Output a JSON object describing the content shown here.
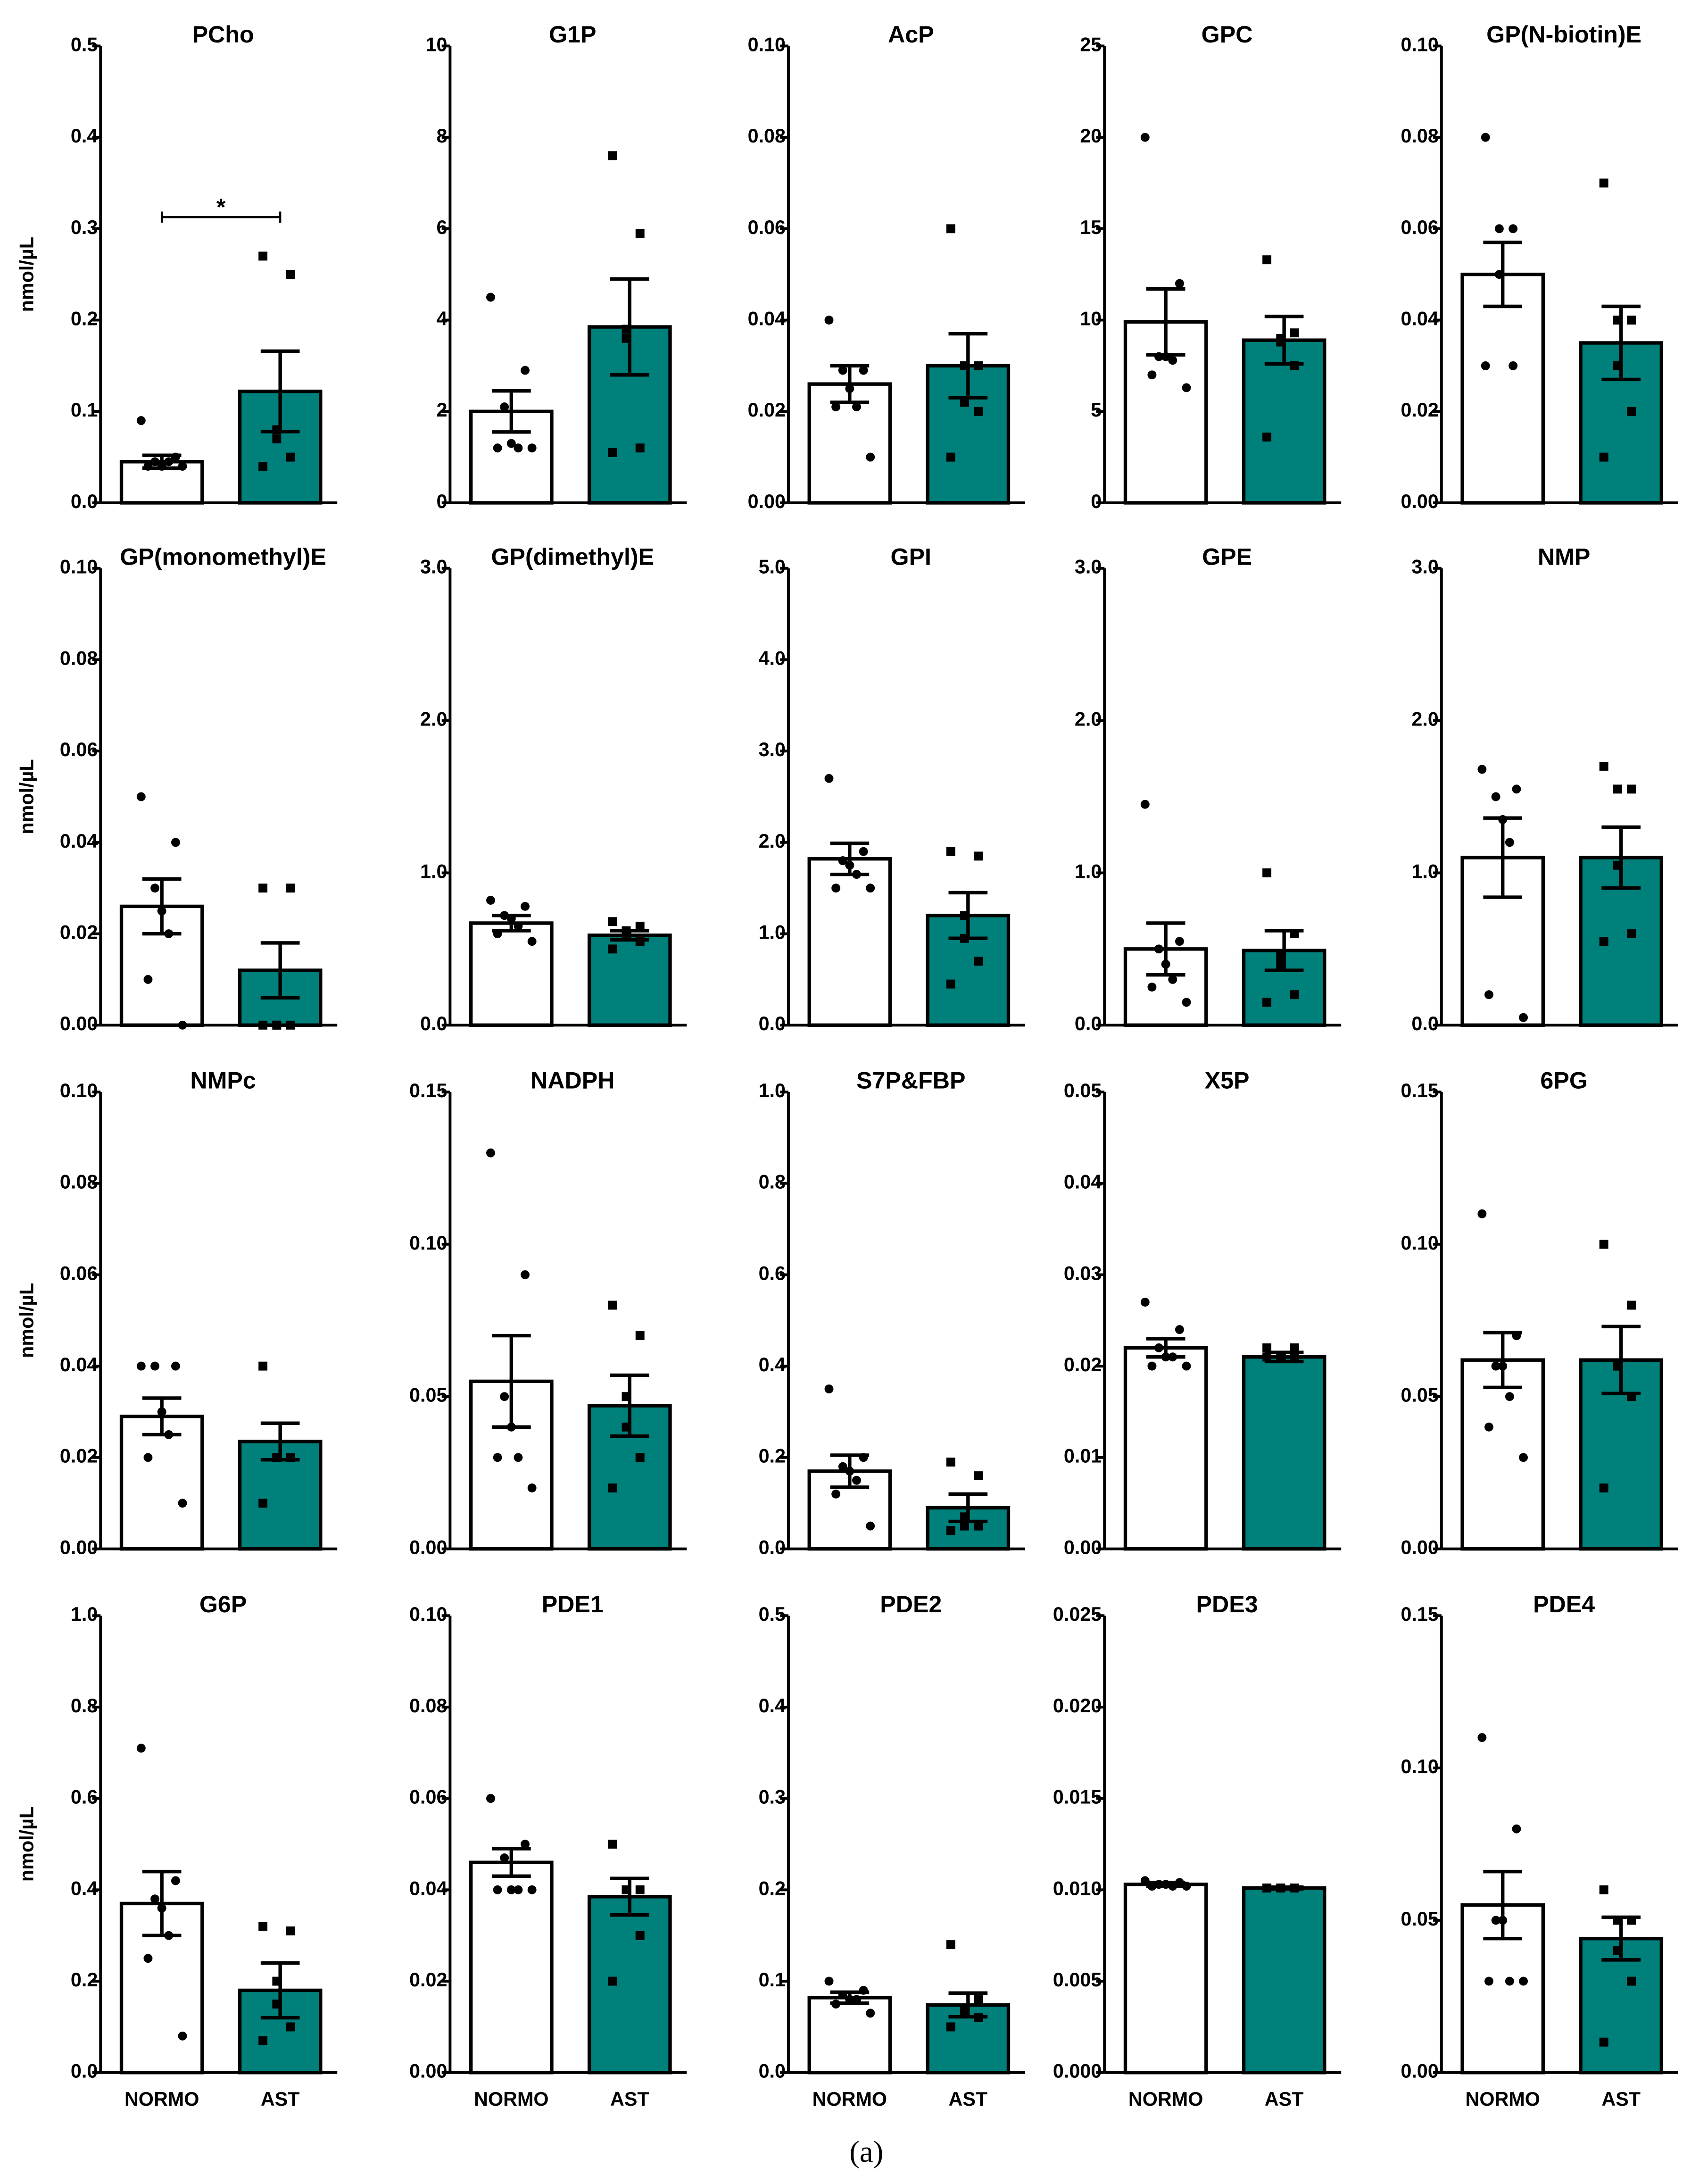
{
  "y_label": "nmol/µL",
  "categories": [
    "NORMO",
    "AST"
  ],
  "colors": [
    "#ffffff",
    "#00807a"
  ],
  "caption": "(a)",
  "chart_data": [
    {
      "type": "bar",
      "title": "PCho",
      "ylim": [
        0,
        0.5
      ],
      "yticks": [
        {
          "value": 0,
          "label": "0.0"
        },
        0.1,
        0.2,
        0.3,
        0.4,
        0.5
      ],
      "values": [
        0.045,
        0.122
      ],
      "errors": [
        0.007,
        0.044
      ],
      "points": [
        [
          0.09,
          0.05,
          0.045,
          0.04,
          0.045,
          0.04,
          0.04
        ],
        [
          0.27,
          0.25,
          0.08,
          0.07,
          0.05,
          0.04
        ]
      ],
      "annotation": "*"
    },
    {
      "type": "bar",
      "title": "G1P",
      "ylim": [
        0,
        10
      ],
      "yticks": [
        0,
        2,
        4,
        6,
        8,
        10
      ],
      "values": [
        2.0,
        3.85
      ],
      "errors": [
        0.45,
        1.05
      ],
      "points": [
        [
          4.5,
          2.9,
          2.1,
          1.3,
          1.2,
          1.2,
          1.2
        ],
        [
          7.6,
          5.9,
          3.8,
          3.6,
          1.2,
          1.1
        ]
      ]
    },
    {
      "type": "bar",
      "title": "AcP",
      "ylim": [
        0,
        0.1
      ],
      "yticks": [
        {
          "value": 0,
          "label": "0.00"
        },
        0.02,
        0.04,
        0.06,
        0.08,
        {
          "value": 0.1,
          "label": "0.10"
        }
      ],
      "values": [
        0.026,
        0.03
      ],
      "errors": [
        0.004,
        0.007
      ],
      "points": [
        [
          0.04,
          0.029,
          0.029,
          0.025,
          0.021,
          0.021,
          0.01
        ],
        [
          0.06,
          0.03,
          0.03,
          0.022,
          0.02,
          0.01
        ]
      ]
    },
    {
      "type": "bar",
      "title": "GPC",
      "ylim": [
        0,
        25
      ],
      "yticks": [
        0,
        5,
        10,
        15,
        20,
        25
      ],
      "values": [
        9.9,
        8.9
      ],
      "errors": [
        1.8,
        1.3
      ],
      "points": [
        [
          20,
          12,
          8,
          8,
          7.8,
          7,
          6.3
        ],
        [
          13.3,
          9.3,
          9,
          8.8,
          7.5,
          3.6
        ]
      ]
    },
    {
      "type": "bar",
      "title": "GP(N-biotin)E",
      "ylim": [
        0,
        0.1
      ],
      "yticks": [
        {
          "value": 0,
          "label": "0.00"
        },
        0.02,
        0.04,
        0.06,
        0.08,
        {
          "value": 0.1,
          "label": "0.10"
        }
      ],
      "values": [
        0.05,
        0.035
      ],
      "errors": [
        0.007,
        0.008
      ],
      "points": [
        [
          0.08,
          0.06,
          0.06,
          0.05,
          0.03,
          0.03
        ],
        [
          0.07,
          0.04,
          0.04,
          0.03,
          0.02,
          0.01
        ]
      ]
    },
    {
      "type": "bar",
      "title": "GP(monomethyl)E",
      "ylim": [
        0,
        0.1
      ],
      "yticks": [
        {
          "value": 0,
          "label": "0.00"
        },
        0.02,
        0.04,
        0.06,
        0.08,
        {
          "value": 0.1,
          "label": "0.10"
        }
      ],
      "values": [
        0.026,
        0.012
      ],
      "errors": [
        0.006,
        0.006
      ],
      "points": [
        [
          0.05,
          0.04,
          0.03,
          0.025,
          0.02,
          0.01,
          0
        ],
        [
          0.03,
          0.03,
          0,
          0,
          0,
          0
        ]
      ]
    },
    {
      "type": "bar",
      "title": "GP(dimethyl)E",
      "ylim": [
        0,
        3
      ],
      "yticks": [
        {
          "value": 0,
          "label": "0.0"
        },
        {
          "value": 1,
          "label": "1.0"
        },
        {
          "value": 2,
          "label": "2.0"
        },
        {
          "value": 3,
          "label": "3.0"
        }
      ],
      "values": [
        0.67,
        0.59
      ],
      "errors": [
        0.05,
        0.03
      ],
      "points": [
        [
          0.82,
          0.78,
          0.72,
          0.7,
          0.65,
          0.6,
          0.55
        ],
        [
          0.68,
          0.65,
          0.62,
          0.6,
          0.55,
          0.5
        ]
      ]
    },
    {
      "type": "bar",
      "title": "GPI",
      "ylim": [
        0,
        5
      ],
      "yticks": [
        {
          "value": 0,
          "label": "0.0"
        },
        {
          "value": 1,
          "label": "1.0"
        },
        {
          "value": 2,
          "label": "2.0"
        },
        {
          "value": 3,
          "label": "3.0"
        },
        {
          "value": 4,
          "label": "4.0"
        },
        {
          "value": 5,
          "label": "5.0"
        }
      ],
      "values": [
        1.82,
        1.2
      ],
      "errors": [
        0.17,
        0.25
      ],
      "points": [
        [
          2.7,
          1.9,
          1.8,
          1.75,
          1.65,
          1.5,
          1.5
        ],
        [
          1.9,
          1.85,
          1.2,
          0.95,
          0.7,
          0.45
        ]
      ]
    },
    {
      "type": "bar",
      "title": "GPE",
      "ylim": [
        0,
        3
      ],
      "yticks": [
        {
          "value": 0,
          "label": "0.0"
        },
        {
          "value": 1,
          "label": "1.0"
        },
        {
          "value": 2,
          "label": "2.0"
        },
        {
          "value": 3,
          "label": "3.0"
        }
      ],
      "values": [
        0.5,
        0.49
      ],
      "errors": [
        0.17,
        0.13
      ],
      "points": [
        [
          1.45,
          0.55,
          0.5,
          0.4,
          0.3,
          0.25,
          0.15
        ],
        [
          1.0,
          0.6,
          0.45,
          0.4,
          0.2,
          0.15
        ]
      ]
    },
    {
      "type": "bar",
      "title": "NMP",
      "ylim": [
        0,
        3
      ],
      "yticks": [
        {
          "value": 0,
          "label": "0.0"
        },
        {
          "value": 1,
          "label": "1.0"
        },
        {
          "value": 2,
          "label": "2.0"
        },
        {
          "value": 3,
          "label": "3.0"
        }
      ],
      "values": [
        1.1,
        1.1
      ],
      "errors": [
        0.26,
        0.2
      ],
      "points": [
        [
          1.68,
          1.55,
          1.5,
          1.35,
          1.2,
          0.2,
          0.05
        ],
        [
          1.7,
          1.55,
          1.55,
          1.05,
          0.6,
          0.55
        ]
      ]
    },
    {
      "type": "bar",
      "title": "NMPc",
      "ylim": [
        0,
        0.1
      ],
      "yticks": [
        {
          "value": 0,
          "label": "0.00"
        },
        0.02,
        0.04,
        0.06,
        0.08,
        {
          "value": 0.1,
          "label": "0.10"
        }
      ],
      "values": [
        0.029,
        0.0235
      ],
      "errors": [
        0.004,
        0.004
      ],
      "points": [
        [
          0.04,
          0.04,
          0.04,
          0.03,
          0.025,
          0.02,
          0.01
        ],
        [
          0.04,
          0.02,
          0.02,
          0.02,
          0.02,
          0.01
        ]
      ]
    },
    {
      "type": "bar",
      "title": "NADPH",
      "ylim": [
        0,
        0.15
      ],
      "yticks": [
        {
          "value": 0,
          "label": "0.00"
        },
        0.05,
        {
          "value": 0.1,
          "label": "0.10"
        },
        0.15
      ],
      "values": [
        0.055,
        0.047
      ],
      "errors": [
        0.015,
        0.01
      ],
      "points": [
        [
          0.13,
          0.09,
          0.05,
          0.04,
          0.03,
          0.03,
          0.02
        ],
        [
          0.08,
          0.07,
          0.05,
          0.04,
          0.03,
          0.02
        ]
      ]
    },
    {
      "type": "bar",
      "title": "S7P&FBP",
      "ylim": [
        0,
        1
      ],
      "yticks": [
        {
          "value": 0,
          "label": "0.0"
        },
        0.2,
        0.4,
        0.6,
        0.8,
        {
          "value": 1,
          "label": "1.0"
        }
      ],
      "values": [
        0.17,
        0.09
      ],
      "errors": [
        0.035,
        0.03
      ],
      "points": [
        [
          0.35,
          0.2,
          0.18,
          0.17,
          0.15,
          0.12,
          0.05
        ],
        [
          0.19,
          0.16,
          0.07,
          0.05,
          0.05,
          0.04
        ]
      ]
    },
    {
      "type": "bar",
      "title": "X5P",
      "ylim": [
        0,
        0.05
      ],
      "yticks": [
        {
          "value": 0,
          "label": "0.00"
        },
        0.01,
        0.02,
        0.03,
        0.04,
        0.05
      ],
      "values": [
        0.022,
        0.021
      ],
      "errors": [
        0.001,
        0.0005
      ],
      "points": [
        [
          0.027,
          0.024,
          0.022,
          0.021,
          0.021,
          0.02,
          0.02
        ],
        [
          0.022,
          0.022,
          0.021,
          0.021,
          0.021,
          0.021
        ]
      ]
    },
    {
      "type": "bar",
      "title": "6PG",
      "ylim": [
        0,
        0.15
      ],
      "yticks": [
        {
          "value": 0,
          "label": "0.00"
        },
        0.05,
        {
          "value": 0.1,
          "label": "0.10"
        },
        0.15
      ],
      "values": [
        0.062,
        0.062
      ],
      "errors": [
        0.009,
        0.011
      ],
      "points": [
        [
          0.11,
          0.07,
          0.06,
          0.06,
          0.05,
          0.04,
          0.03
        ],
        [
          0.1,
          0.08,
          0.06,
          0.06,
          0.05,
          0.02
        ]
      ]
    },
    {
      "type": "bar",
      "title": "G6P",
      "ylim": [
        0,
        1
      ],
      "yticks": [
        {
          "value": 0,
          "label": "0.0"
        },
        0.2,
        0.4,
        0.6,
        0.8,
        {
          "value": 1,
          "label": "1.0"
        }
      ],
      "values": [
        0.37,
        0.18
      ],
      "errors": [
        0.07,
        0.06
      ],
      "points": [
        [
          0.71,
          0.42,
          0.38,
          0.36,
          0.3,
          0.25,
          0.08
        ],
        [
          0.32,
          0.31,
          0.2,
          0.15,
          0.1,
          0.07
        ]
      ]
    },
    {
      "type": "bar",
      "title": "PDE1",
      "ylim": [
        0,
        0.1
      ],
      "yticks": [
        {
          "value": 0,
          "label": "0.00"
        },
        0.02,
        0.04,
        0.06,
        0.08,
        {
          "value": 0.1,
          "label": "0.10"
        }
      ],
      "values": [
        0.046,
        0.0385
      ],
      "errors": [
        0.003,
        0.004
      ],
      "points": [
        [
          0.06,
          0.05,
          0.047,
          0.04,
          0.04,
          0.04,
          0.04
        ],
        [
          0.05,
          0.04,
          0.04,
          0.04,
          0.03,
          0.02
        ]
      ]
    },
    {
      "type": "bar",
      "title": "PDE2",
      "ylim": [
        0,
        0.5
      ],
      "yticks": [
        {
          "value": 0,
          "label": "0.0"
        },
        0.1,
        0.2,
        0.3,
        0.4,
        0.5
      ],
      "values": [
        0.082,
        0.074
      ],
      "errors": [
        0.006,
        0.013
      ],
      "points": [
        [
          0.1,
          0.09,
          0.085,
          0.08,
          0.08,
          0.075,
          0.065
        ],
        [
          0.14,
          0.08,
          0.07,
          0.065,
          0.06,
          0.05
        ]
      ]
    },
    {
      "type": "bar",
      "title": "PDE3",
      "ylim": [
        0,
        0.025
      ],
      "yticks": [
        {
          "value": 0,
          "label": "0.000"
        },
        0.005,
        {
          "value": 0.01,
          "label": "0.010"
        },
        0.015,
        {
          "value": 0.02,
          "label": "0.020"
        },
        0.025
      ],
      "values": [
        0.0103,
        0.0101
      ],
      "errors": [
        0.0001,
        5e-05
      ],
      "points": [
        [
          0.0105,
          0.0104,
          0.0103,
          0.0103,
          0.0102,
          0.0102,
          0.0102
        ],
        [
          0.0101,
          0.0101,
          0.0101,
          0.0101,
          0.0101,
          0.0101
        ]
      ]
    },
    {
      "type": "bar",
      "title": "PDE4",
      "ylim": [
        0,
        0.15
      ],
      "yticks": [
        {
          "value": 0,
          "label": "0.00"
        },
        0.05,
        {
          "value": 0.1,
          "label": "0.10"
        },
        0.15
      ],
      "values": [
        0.055,
        0.044
      ],
      "errors": [
        0.011,
        0.007
      ],
      "points": [
        [
          0.11,
          0.08,
          0.05,
          0.05,
          0.03,
          0.03,
          0.03
        ],
        [
          0.06,
          0.05,
          0.05,
          0.04,
          0.03,
          0.01
        ]
      ]
    }
  ]
}
